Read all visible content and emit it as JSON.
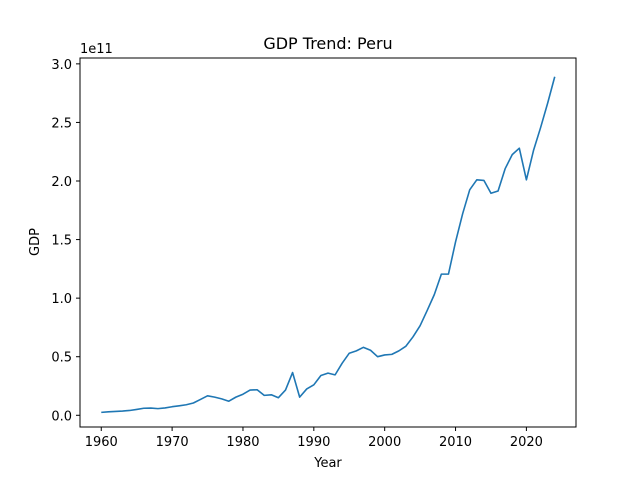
{
  "chart_data": {
    "type": "line",
    "title": "GDP Trend: Peru",
    "xlabel": "Year",
    "ylabel": "GDP",
    "y_offset_label": "1e11",
    "y_scale_multiplier": 100000000000.0,
    "xlim": [
      1957,
      2027
    ],
    "ylim": [
      -0.1,
      3.05
    ],
    "x_ticks": [
      1960,
      1970,
      1980,
      1990,
      2000,
      2010,
      2020
    ],
    "x_tick_labels": [
      "1960",
      "1970",
      "1980",
      "1990",
      "2000",
      "2010",
      "2020"
    ],
    "y_ticks": [
      0.0,
      0.5,
      1.0,
      1.5,
      2.0,
      2.5,
      3.0
    ],
    "y_tick_labels": [
      "0.0",
      "0.5",
      "1.0",
      "1.5",
      "2.0",
      "2.5",
      "3.0"
    ],
    "grid": false,
    "line_color": "#1f77b4",
    "series": [
      {
        "x": [
          1960,
          1961,
          1962,
          1963,
          1964,
          1965,
          1966,
          1967,
          1968,
          1969,
          1970,
          1971,
          1972,
          1973,
          1974,
          1975,
          1976,
          1977,
          1978,
          1979,
          1980,
          1981,
          1982,
          1983,
          1984,
          1985,
          1986,
          1987,
          1988,
          1989,
          1990,
          1991,
          1992,
          1993,
          1994,
          1995,
          1996,
          1997,
          1998,
          1999,
          2000,
          2001,
          2002,
          2003,
          2004,
          2005,
          2006,
          2007,
          2008,
          2009,
          2010,
          2011,
          2012,
          2013,
          2014,
          2015,
          2016,
          2017,
          2018,
          2019,
          2020,
          2021,
          2022,
          2023,
          2024
        ],
        "y": [
          0.025,
          0.03,
          0.033,
          0.036,
          0.041,
          0.05,
          0.06,
          0.062,
          0.057,
          0.063,
          0.073,
          0.081,
          0.09,
          0.105,
          0.135,
          0.166,
          0.155,
          0.14,
          0.12,
          0.155,
          0.18,
          0.215,
          0.218,
          0.17,
          0.175,
          0.15,
          0.215,
          0.365,
          0.155,
          0.225,
          0.26,
          0.34,
          0.36,
          0.345,
          0.445,
          0.53,
          0.55,
          0.58,
          0.555,
          0.5,
          0.515,
          0.52,
          0.55,
          0.59,
          0.67,
          0.765,
          0.895,
          1.03,
          1.205,
          1.205,
          1.48,
          1.72,
          1.925,
          2.01,
          2.005,
          1.895,
          1.915,
          2.105,
          2.225,
          2.28,
          2.01,
          2.26,
          2.455,
          2.665,
          2.89
        ]
      }
    ]
  }
}
